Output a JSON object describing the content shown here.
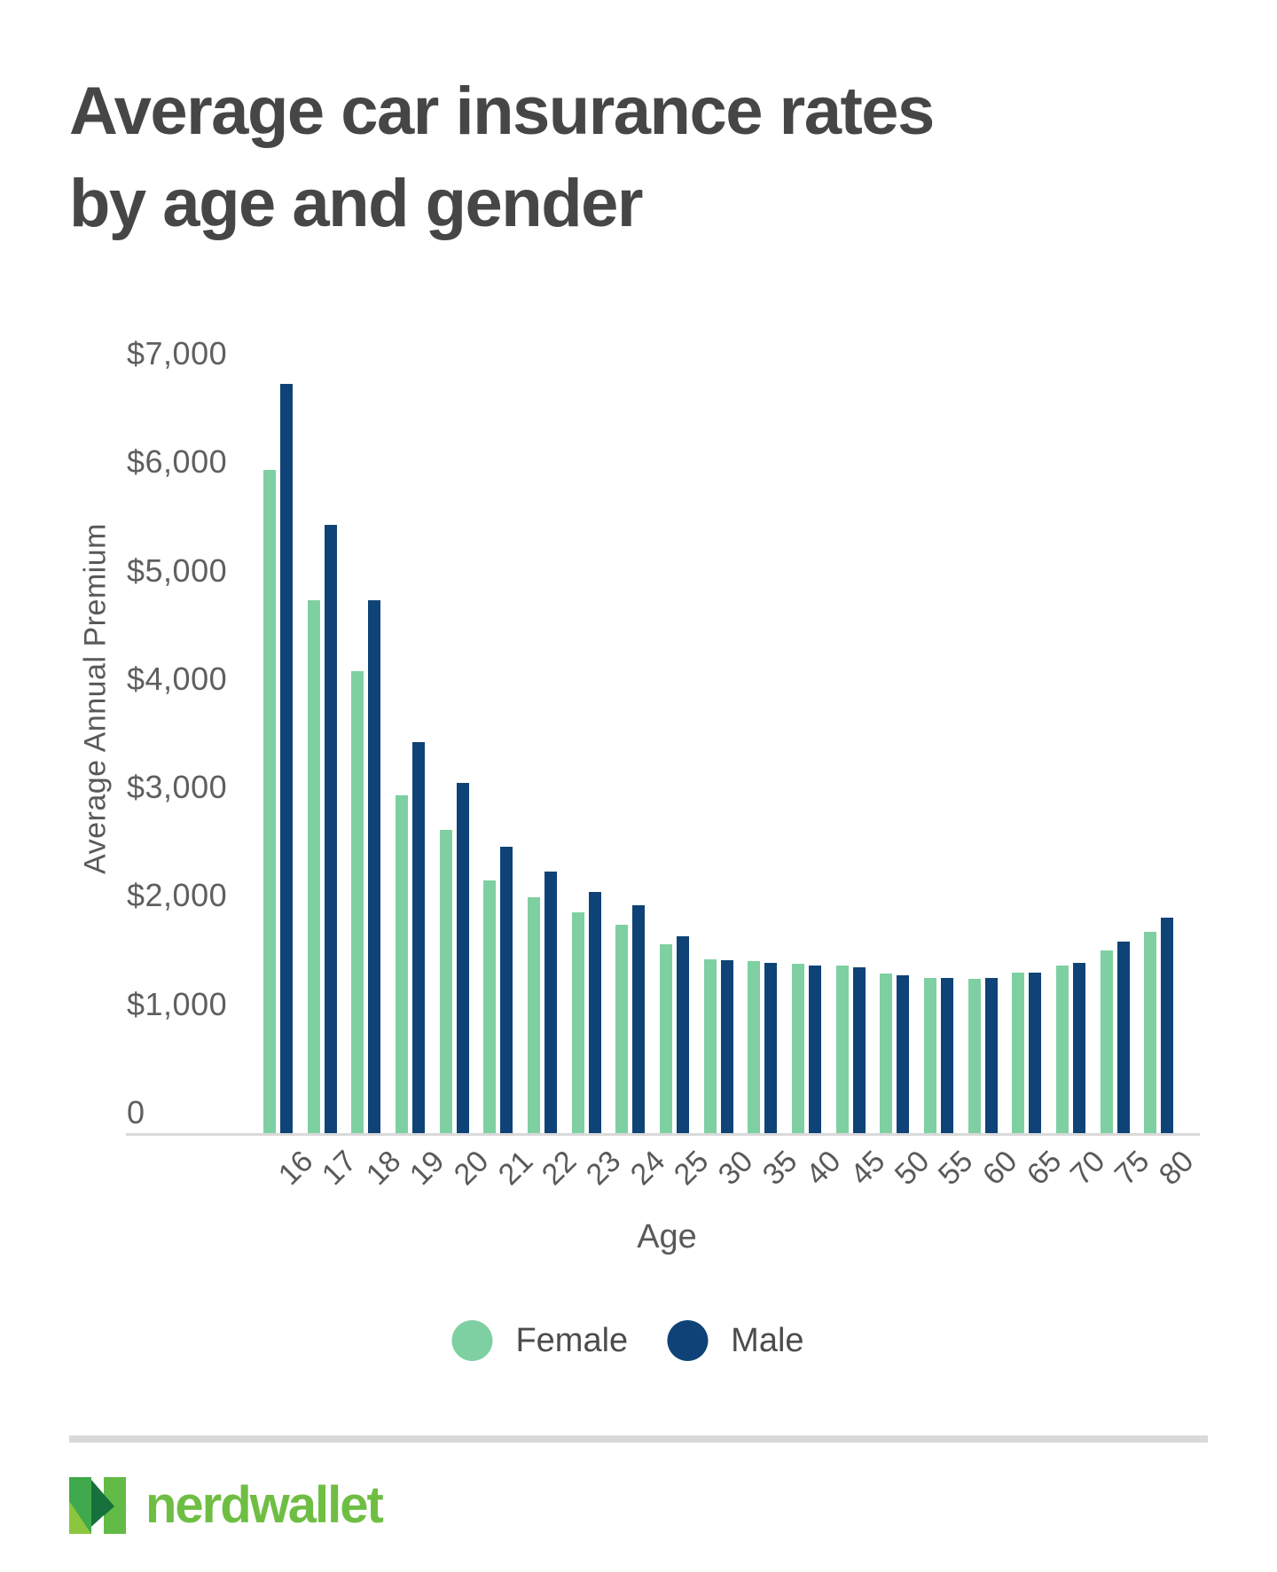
{
  "title": {
    "line1": "Average car insurance rates",
    "line2": "by age and gender"
  },
  "chart_data": {
    "type": "bar",
    "title": "Average car insurance rates by age and gender",
    "xlabel": "Age",
    "ylabel": "Average Annual Premium",
    "ylim": [
      0,
      7000
    ],
    "grid": false,
    "legend_position": "bottom",
    "categories": [
      "16",
      "17",
      "18",
      "19",
      "20",
      "21",
      "22",
      "23",
      "24",
      "25",
      "30",
      "35",
      "40",
      "45",
      "50",
      "55",
      "60",
      "65",
      "70",
      "75",
      "80"
    ],
    "series": [
      {
        "name": "Female",
        "color": "#7ED0A2",
        "values": [
          5925,
          4725,
          4075,
          2930,
          2610,
          2140,
          1990,
          1845,
          1730,
          1550,
          1415,
          1400,
          1370,
          1355,
          1280,
          1245,
          1235,
          1290,
          1360,
          1500,
          1665
        ]
      },
      {
        "name": "Male",
        "color": "#0F4377",
        "values": [
          6725,
          5425,
          4725,
          3415,
          3040,
          2450,
          2225,
          2040,
          1910,
          1630,
          1405,
          1380,
          1355,
          1340,
          1270,
          1240,
          1240,
          1295,
          1380,
          1575,
          1795
        ]
      }
    ],
    "yticks": [
      {
        "label": "$7,000",
        "value": 7000
      },
      {
        "label": "$6,000",
        "value": 6000
      },
      {
        "label": "$5,000",
        "value": 5000
      },
      {
        "label": "$4,000",
        "value": 4000
      },
      {
        "label": "$3,000",
        "value": 3000
      },
      {
        "label": "$2,000",
        "value": 2000
      },
      {
        "label": "$1,000",
        "value": 1000
      },
      {
        "label": "0",
        "value": 0
      }
    ]
  },
  "legend": {
    "items": [
      {
        "label": "Female",
        "color": "#7ED0A2"
      },
      {
        "label": "Male",
        "color": "#0F4377"
      }
    ]
  },
  "footer": {
    "brand": "nerdwallet",
    "brand_color": "#6FBE44",
    "logo_colors": {
      "stem_medium": "#3FA94C",
      "stem_light": "#8CC63F",
      "stem_right": "#62BB46",
      "arrow_dark": "#17713C"
    }
  }
}
